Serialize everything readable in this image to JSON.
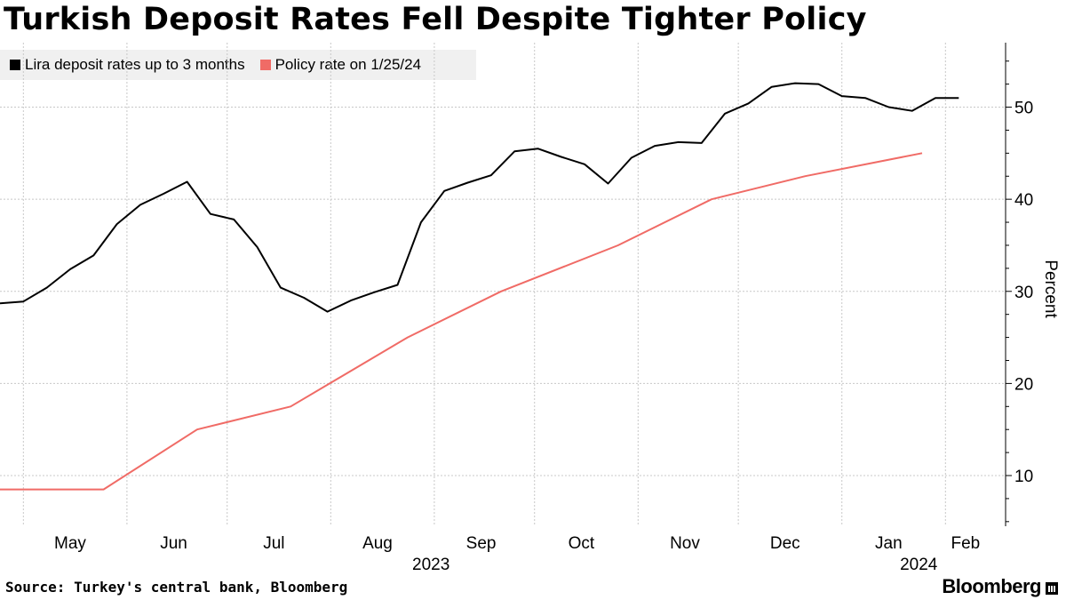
{
  "title": "Turkish Deposit Rates Fell Despite Tighter Policy",
  "source": "Source: Turkey's central bank, Bloomberg",
  "brand": "Bloomberg",
  "colors": {
    "series1": "#000000",
    "series2": "#f06b66",
    "grid": "#c8c8c8",
    "legend_bg": "#f0f0f0"
  },
  "chart_data": {
    "type": "line",
    "title": "Turkish Deposit Rates Fell Despite Tighter Policy",
    "xlabel": "",
    "ylabel": "Percent",
    "ylim": [
      4.5,
      57
    ],
    "yticks": [
      10,
      20,
      30,
      40,
      50
    ],
    "grid": true,
    "legend_position": "top-left",
    "x_range": [
      "2023-04-24",
      "2024-02-19"
    ],
    "x_month_gridlines": [
      "2023-05-01",
      "2023-06-01",
      "2023-07-01",
      "2023-08-01",
      "2023-09-01",
      "2023-10-01",
      "2023-11-01",
      "2023-12-01",
      "2024-01-01",
      "2024-02-01"
    ],
    "x_labels": [
      {
        "label": "May",
        "date": "2023-05-15"
      },
      {
        "label": "Jun",
        "date": "2023-06-15"
      },
      {
        "label": "Jul",
        "date": "2023-07-15"
      },
      {
        "label": "Aug",
        "date": "2023-08-15"
      },
      {
        "label": "Sep",
        "date": "2023-09-15"
      },
      {
        "label": "Oct",
        "date": "2023-10-15"
      },
      {
        "label": "Nov",
        "date": "2023-11-15"
      },
      {
        "label": "Dec",
        "date": "2023-12-15"
      },
      {
        "label": "Jan",
        "date": "2024-01-15"
      },
      {
        "label": "Feb",
        "date": "2024-02-07"
      }
    ],
    "year_labels": [
      {
        "label": "2023",
        "date": "2023-08-31"
      },
      {
        "label": "2024",
        "date": "2024-01-24"
      }
    ],
    "series": [
      {
        "name": "Lira deposit rates up to 3 months",
        "color": "#000000",
        "points": [
          [
            "2023-04-24",
            28.7
          ],
          [
            "2023-05-01",
            28.9
          ],
          [
            "2023-05-08",
            30.4
          ],
          [
            "2023-05-15",
            32.4
          ],
          [
            "2023-05-22",
            33.9
          ],
          [
            "2023-05-29",
            37.3
          ],
          [
            "2023-06-05",
            39.4
          ],
          [
            "2023-06-12",
            40.6
          ],
          [
            "2023-06-19",
            41.9
          ],
          [
            "2023-06-26",
            38.4
          ],
          [
            "2023-07-03",
            37.8
          ],
          [
            "2023-07-10",
            34.8
          ],
          [
            "2023-07-17",
            30.4
          ],
          [
            "2023-07-24",
            29.3
          ],
          [
            "2023-07-31",
            27.8
          ],
          [
            "2023-08-07",
            29.0
          ],
          [
            "2023-08-14",
            29.9
          ],
          [
            "2023-08-21",
            30.7
          ],
          [
            "2023-08-28",
            37.5
          ],
          [
            "2023-09-04",
            40.9
          ],
          [
            "2023-09-11",
            41.8
          ],
          [
            "2023-09-18",
            42.6
          ],
          [
            "2023-09-25",
            45.2
          ],
          [
            "2023-10-02",
            45.5
          ],
          [
            "2023-10-09",
            44.6
          ],
          [
            "2023-10-16",
            43.8
          ],
          [
            "2023-10-23",
            41.7
          ],
          [
            "2023-10-30",
            44.5
          ],
          [
            "2023-11-06",
            45.8
          ],
          [
            "2023-11-13",
            46.2
          ],
          [
            "2023-11-20",
            46.1
          ],
          [
            "2023-11-27",
            49.3
          ],
          [
            "2023-12-04",
            50.4
          ],
          [
            "2023-12-11",
            52.2
          ],
          [
            "2023-12-18",
            52.6
          ],
          [
            "2023-12-25",
            52.5
          ],
          [
            "2024-01-01",
            51.2
          ],
          [
            "2024-01-08",
            51.0
          ],
          [
            "2024-01-15",
            50.0
          ],
          [
            "2024-01-22",
            49.6
          ],
          [
            "2024-01-29",
            51.0
          ],
          [
            "2024-02-05",
            51.0
          ]
        ]
      },
      {
        "name": "Policy rate on 1/25/24",
        "color": "#f06b66",
        "points": [
          [
            "2023-04-24",
            8.5
          ],
          [
            "2023-05-25",
            8.5
          ],
          [
            "2023-06-22",
            15.0
          ],
          [
            "2023-07-20",
            17.5
          ],
          [
            "2023-08-24",
            25.0
          ],
          [
            "2023-09-21",
            30.0
          ],
          [
            "2023-10-26",
            35.0
          ],
          [
            "2023-11-23",
            40.0
          ],
          [
            "2023-12-21",
            42.5
          ],
          [
            "2024-01-25",
            45.0
          ]
        ]
      }
    ]
  }
}
